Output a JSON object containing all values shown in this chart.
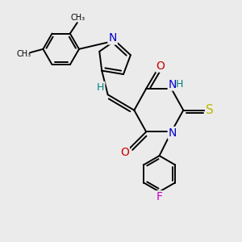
{
  "bg_color": "#ebebeb",
  "bond_color": "#000000",
  "bond_width": 1.4,
  "atom_colors": {
    "N": "#0000cc",
    "O": "#cc0000",
    "S": "#bbbb00",
    "F": "#cc00cc",
    "H": "#008080",
    "C": "#000000"
  },
  "font_size": 9,
  "fig_width": 3.0,
  "fig_height": 3.0
}
